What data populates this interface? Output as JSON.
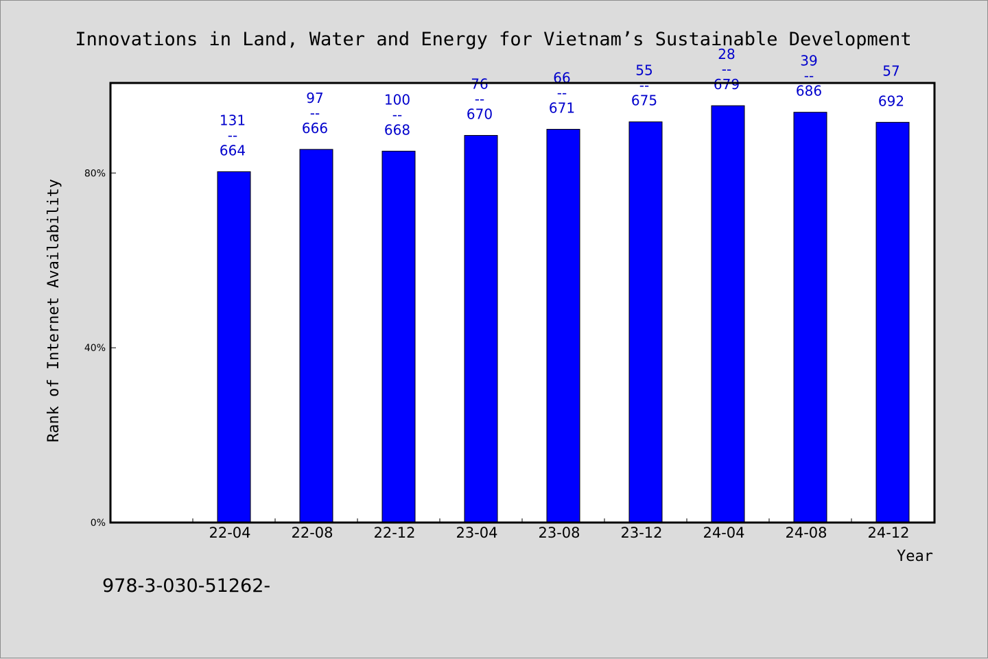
{
  "chart_data": {
    "type": "bar",
    "title": "Innovations in Land, Water and Energy for Vietnam’s Sustainable Development",
    "xlabel": "Year",
    "ylabel": "Rank of Internet Availability",
    "categories": [
      "22-04",
      "22-08",
      "22-12",
      "23-04",
      "23-08",
      "23-12",
      "24-04",
      "24-08",
      "24-12"
    ],
    "values": [
      80.3,
      85.4,
      85.0,
      88.6,
      90.0,
      91.7,
      95.4,
      93.9,
      91.6
    ],
    "data_labels": [
      {
        "top": "131",
        "separator": "--",
        "bottom": "664"
      },
      {
        "top": "97",
        "separator": "--",
        "bottom": "666"
      },
      {
        "top": "100",
        "separator": "--",
        "bottom": "668"
      },
      {
        "top": "76",
        "separator": "--",
        "bottom": "670"
      },
      {
        "top": "66",
        "separator": "--",
        "bottom": "671"
      },
      {
        "top": "55",
        "separator": "--",
        "bottom": "675"
      },
      {
        "top": "28",
        "separator": "--",
        "bottom": "679"
      },
      {
        "top": "39",
        "separator": "--",
        "bottom": "686"
      },
      {
        "top": "57",
        "separator": "",
        "bottom": "692"
      }
    ],
    "yticks": [
      0,
      40,
      80
    ],
    "ytick_labels": [
      "0%",
      "40%",
      "80%"
    ],
    "ylim": [
      0,
      100.6
    ],
    "grid": false,
    "colors": {
      "bar": "#0000ff",
      "label": "#0000cc",
      "background": "#dcdcdc",
      "plot": "#ffffff"
    }
  },
  "footer": {
    "text": "978-3-030-51262-"
  }
}
